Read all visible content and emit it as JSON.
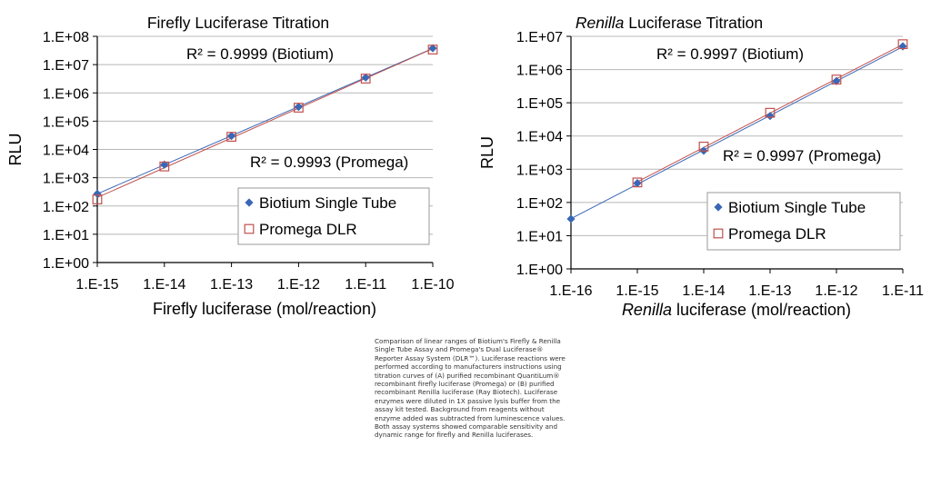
{
  "caption": "Comparison of linear ranges of Biotium's Firefly & Renilla Single Tube Assay and Promega's Dual Luciferase® Reporter Assay System (DLR™). Luciferase reactions were performed according to manufacturers instructions using titration curves of (A) purified recombinant QuantiLum® recombinant firefly luciferase (Promega) or (B) purified recombinant Renilla luciferase (Ray Biotech). Luciferase enzymes were diluted in 1X passive lysis buffer from the assay kit tested. Background from reagents without enzyme added was subtracted from luminescence values. Both assay systems showed comparable sensitivity and dynamic range for firefly and Renilla luciferases.",
  "colors": {
    "biotium": "#3a67b5",
    "promega": "#c0504d",
    "grid": "#b8b8b8",
    "axis": "#000000"
  },
  "chart_data": [
    {
      "type": "scatter",
      "title": "Firefly Luciferase Titration",
      "title_italic": "",
      "xlabel": "Firefly luciferase (mol/reaction)",
      "xlabel_italic": "",
      "ylabel": "RLU",
      "x_scale": "log",
      "y_scale": "log",
      "xlim": [
        1e-15,
        1e-10
      ],
      "ylim": [
        1,
        100000000
      ],
      "x_ticks": [
        "1.E-15",
        "1.E-14",
        "1.E-13",
        "1.E-12",
        "1.E-11",
        "1.E-10"
      ],
      "y_ticks": [
        "1.E+00",
        "1.E+01",
        "1.E+02",
        "1.E+03",
        "1.E+04",
        "1.E+05",
        "1.E+06",
        "1.E+07",
        "1.E+08"
      ],
      "grid": "horizontal",
      "legend_position": "bottom-right",
      "annotations": [
        "R² = 0.9999 (Biotium)",
        "R² = 0.9993 (Promega)"
      ],
      "series": [
        {
          "name": "Biotium Single Tube",
          "marker": "diamond",
          "x": [
            1e-15,
            1e-14,
            1e-13,
            1e-12,
            1e-11,
            1e-10
          ],
          "y": [
            270,
            2900,
            30000,
            320000,
            3500000,
            38000000
          ]
        },
        {
          "name": "Promega DLR",
          "marker": "open-square",
          "x": [
            1e-15,
            1e-14,
            1e-13,
            1e-12,
            1e-11,
            1e-10
          ],
          "y": [
            170,
            2500,
            28000,
            300000,
            3200000,
            34000000
          ]
        }
      ]
    },
    {
      "type": "scatter",
      "title": " Luciferase Titration",
      "title_italic": "Renilla",
      "xlabel": " luciferase (mol/reaction)",
      "xlabel_italic": "Renilla",
      "ylabel": "RLU",
      "x_scale": "log",
      "y_scale": "log",
      "xlim": [
        1e-16,
        1e-11
      ],
      "ylim": [
        1,
        10000000
      ],
      "x_ticks": [
        "1.E-16",
        "1.E-15",
        "1.E-14",
        "1.E-13",
        "1.E-12",
        "1.E-11"
      ],
      "y_ticks": [
        "1.E+00",
        "1.E+01",
        "1.E+02",
        "1.E+03",
        "1.E+04",
        "1.E+05",
        "1.E+06",
        "1.E+07"
      ],
      "grid": "horizontal",
      "legend_position": "bottom-right",
      "annotations": [
        "R² = 0.9997 (Biotium)",
        "R² = 0.9997 (Promega)"
      ],
      "series": [
        {
          "name": "Biotium Single Tube",
          "marker": "diamond",
          "x": [
            1e-16,
            1e-15,
            1e-14,
            1e-13,
            1e-12,
            1e-11
          ],
          "y": [
            32,
            380,
            3600,
            40000,
            450000,
            5000000
          ]
        },
        {
          "name": "Promega DLR",
          "marker": "open-square",
          "x": [
            1e-15,
            1e-14,
            1e-13,
            1e-12,
            1e-11
          ],
          "y": [
            400,
            4800,
            50000,
            500000,
            5800000
          ]
        }
      ]
    }
  ]
}
